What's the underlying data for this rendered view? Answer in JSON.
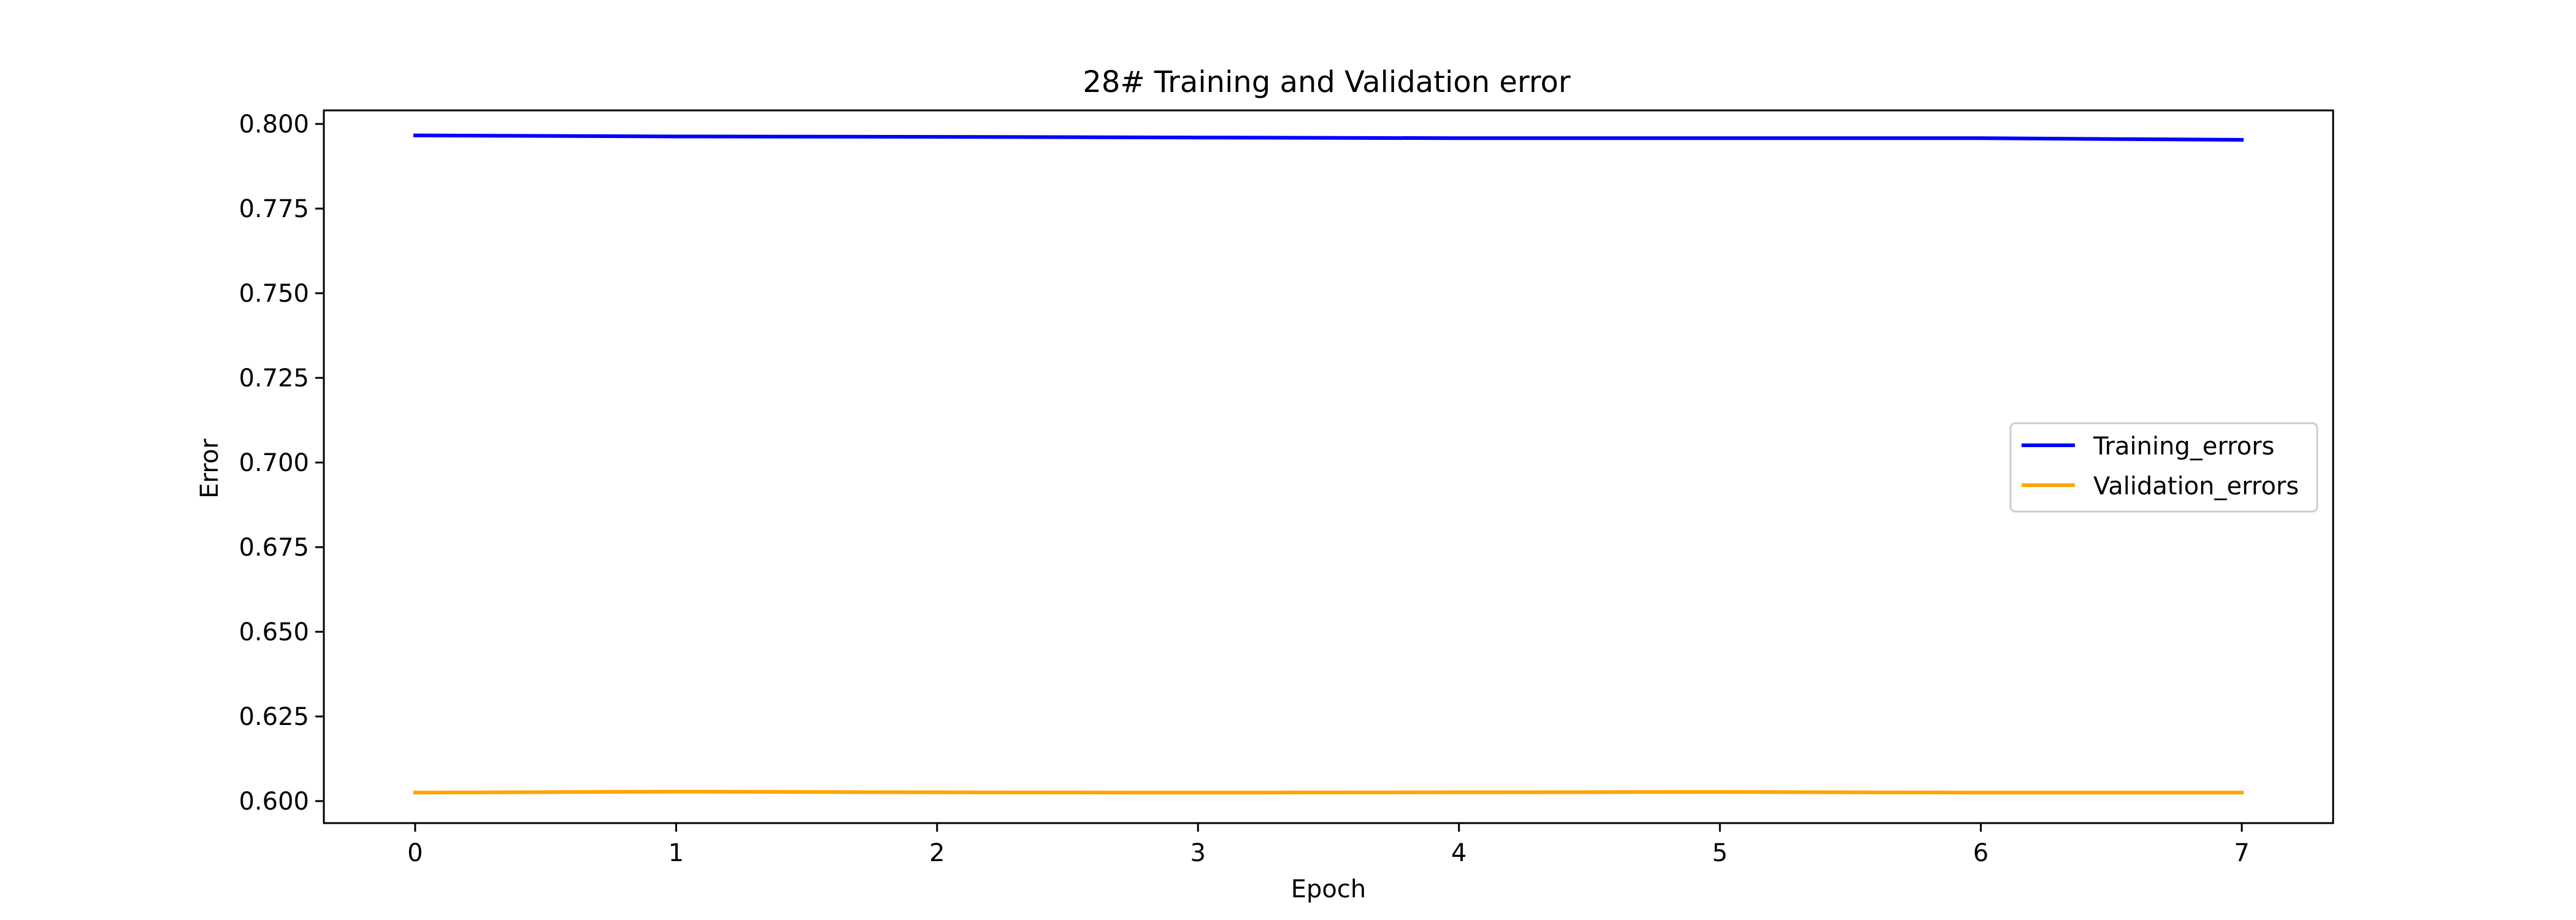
{
  "chart_data": {
    "type": "line",
    "title": "28# Training and Validation error",
    "xlabel": "Epoch",
    "ylabel": "Error",
    "x": [
      0,
      1,
      2,
      3,
      4,
      5,
      6,
      7
    ],
    "xlim": [
      -0.35,
      7.35
    ],
    "ylim": [
      0.5935,
      0.804
    ],
    "xticks": [
      0,
      1,
      2,
      3,
      4,
      5,
      6,
      7
    ],
    "yticks": [
      0.6,
      0.625,
      0.65,
      0.675,
      0.7,
      0.725,
      0.75,
      0.775,
      0.8
    ],
    "yticklabels": [
      "0.600",
      "0.625",
      "0.650",
      "0.675",
      "0.700",
      "0.725",
      "0.750",
      "0.775",
      "0.800"
    ],
    "grid": false,
    "legend_position": "center-right",
    "series": [
      {
        "name": "Training_errors",
        "color": "#0000ff",
        "values": [
          0.7966,
          0.7963,
          0.7962,
          0.796,
          0.7958,
          0.7958,
          0.7958,
          0.7953
        ]
      },
      {
        "name": "Validation_errors",
        "color": "#ffa500",
        "values": [
          0.6025,
          0.6028,
          0.6026,
          0.6025,
          0.6026,
          0.6027,
          0.6025,
          0.6025
        ]
      }
    ]
  }
}
